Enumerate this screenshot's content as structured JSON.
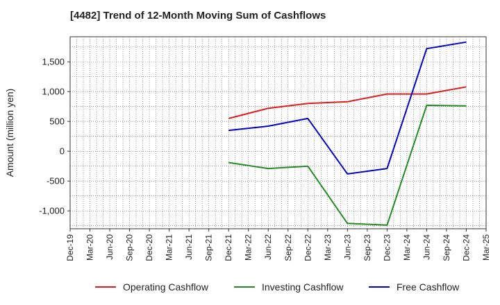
{
  "chart_data": {
    "type": "line",
    "title": "[4482]  Trend of 12-Month Moving Sum of Cashflows",
    "ylabel": "Amount (million yen)",
    "xlabel": "",
    "ylim": [
      -1300,
      1920
    ],
    "yticks": [
      -1000,
      -500,
      0,
      500,
      1000,
      1500
    ],
    "ytick_labels": [
      "-1,000",
      "-500",
      "0",
      "500",
      "1,000",
      "1,500"
    ],
    "categories": [
      "Dec-19",
      "Mar-20",
      "Jun-20",
      "Sep-20",
      "Dec-20",
      "Mar-21",
      "Jun-21",
      "Sep-21",
      "Dec-21",
      "Mar-22",
      "Jun-22",
      "Sep-22",
      "Dec-22",
      "Mar-23",
      "Jun-23",
      "Sep-23",
      "Dec-23",
      "Mar-24",
      "Jun-24",
      "Sep-24",
      "Dec-24",
      "Mar-25"
    ],
    "grid": true,
    "legend_position": "bottom",
    "series": [
      {
        "name": "Operating Cashflow",
        "color": "#e31a1c",
        "x": [
          "Dec-21",
          "Jun-22",
          "Dec-22",
          "Jun-23",
          "Dec-23",
          "Jun-24",
          "Dec-24"
        ],
        "values": [
          550,
          720,
          800,
          830,
          960,
          960,
          1080
        ]
      },
      {
        "name": "Investing Cashflow",
        "color": "#238b23",
        "x": [
          "Dec-21",
          "Jun-22",
          "Dec-22",
          "Jun-23",
          "Dec-23",
          "Jun-24",
          "Dec-24"
        ],
        "values": [
          -190,
          -290,
          -250,
          -1210,
          -1240,
          770,
          760
        ]
      },
      {
        "name": "Free Cashflow",
        "color": "#0000cc",
        "x": [
          "Dec-21",
          "Jun-22",
          "Dec-22",
          "Jun-23",
          "Dec-23",
          "Jun-24",
          "Dec-24"
        ],
        "values": [
          350,
          420,
          550,
          -380,
          -290,
          1720,
          1830
        ]
      }
    ]
  }
}
